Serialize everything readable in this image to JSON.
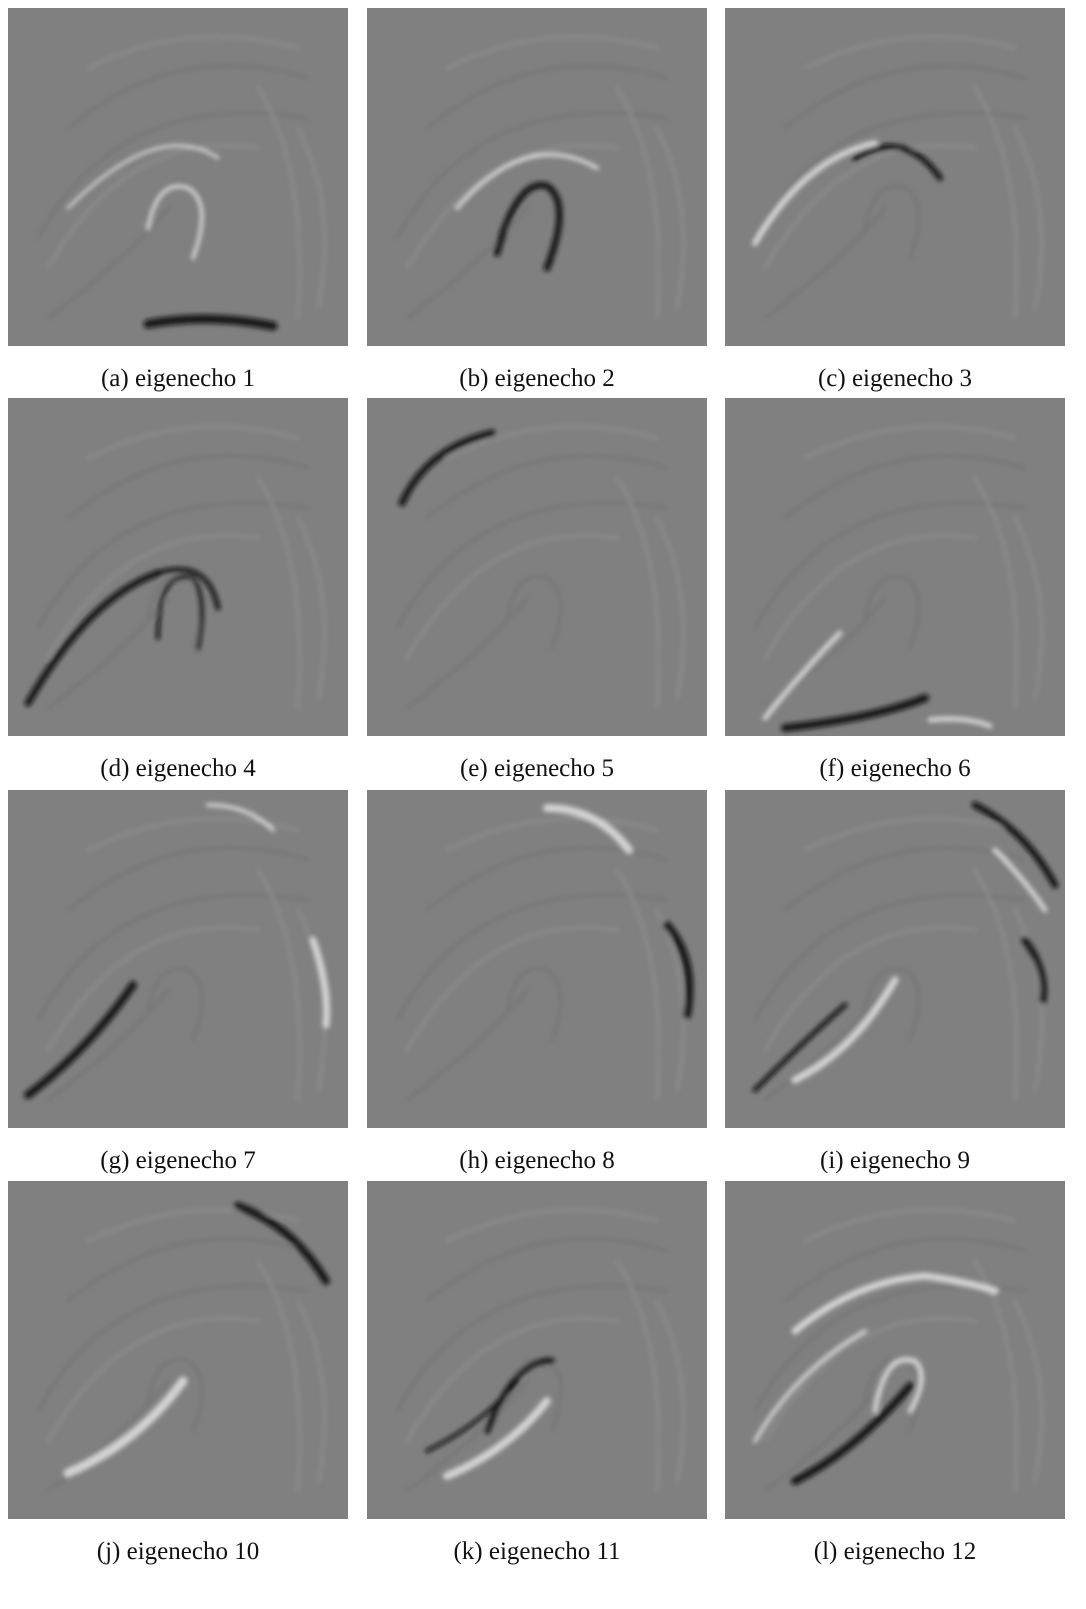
{
  "panels": [
    {
      "caption": "(a) eigenecho 1"
    },
    {
      "caption": "(b) eigenecho 2"
    },
    {
      "caption": "(c) eigenecho 3"
    },
    {
      "caption": "(d) eigenecho 4"
    },
    {
      "caption": "(e) eigenecho 5"
    },
    {
      "caption": "(f) eigenecho 6"
    },
    {
      "caption": "(g) eigenecho 7"
    },
    {
      "caption": "(h) eigenecho 8"
    },
    {
      "caption": "(i) eigenecho 9"
    },
    {
      "caption": "(j) eigenecho 10"
    },
    {
      "caption": "(k) eigenecho 11"
    },
    {
      "caption": "(l) eigenecho 12"
    }
  ]
}
